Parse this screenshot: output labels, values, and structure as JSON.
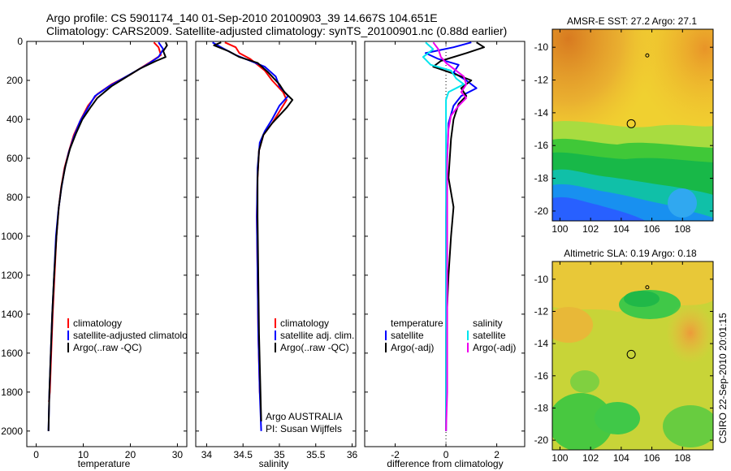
{
  "header": {
    "line1": "Argo profile: CS 5901174_140 01-Sep-2010 20100903_39 14.667S 104.651E",
    "line2": "Climatology: CARS2009. Satellite-adjusted climatology: synTS_20100901.nc (0.88d earlier)"
  },
  "footer_text": "CSIRO 22-Sep-2010 20:01:15",
  "colors": {
    "climatology": "#ff0000",
    "satellite": "#0000ff",
    "argo": "#000000",
    "salinity_satellite": "#00e5ee",
    "salinity_argo": "#ee00ee"
  },
  "chart_data": [
    {
      "type": "line",
      "id": "temperature",
      "xlabel": "temperature",
      "ylabel": "",
      "xlim": [
        -2,
        32
      ],
      "ylim": [
        2080,
        0
      ],
      "y_inverted": true,
      "xticks": [
        0,
        10,
        20,
        30
      ],
      "yticks": [
        0,
        200,
        400,
        600,
        800,
        1000,
        1200,
        1400,
        1600,
        1800,
        2000
      ],
      "legend": [
        "climatology",
        "satellite-adjusted climatology",
        "Argo(..raw -QC)"
      ],
      "series": [
        {
          "name": "climatology",
          "color": "#ff0000",
          "points": [
            [
              25.0,
              5
            ],
            [
              26.0,
              30
            ],
            [
              26.5,
              70
            ],
            [
              24.0,
              110
            ],
            [
              20.0,
              170
            ],
            [
              16.0,
              220
            ],
            [
              13.0,
              270
            ],
            [
              11.0,
              330
            ],
            [
              9.5,
              400
            ],
            [
              8.0,
              480
            ],
            [
              7.0,
              560
            ],
            [
              6.0,
              650
            ],
            [
              5.3,
              750
            ],
            [
              4.8,
              850
            ],
            [
              4.3,
              1000
            ],
            [
              3.9,
              1200
            ],
            [
              3.5,
              1400
            ],
            [
              3.2,
              1600
            ],
            [
              2.9,
              1800
            ],
            [
              2.7,
              1850
            ]
          ]
        },
        {
          "name": "satellite-adjusted climatology",
          "color": "#0000ff",
          "points": [
            [
              26.0,
              5
            ],
            [
              27.0,
              40
            ],
            [
              26.0,
              80
            ],
            [
              23.5,
              120
            ],
            [
              19.5,
              175
            ],
            [
              15.5,
              230
            ],
            [
              12.5,
              280
            ],
            [
              11.0,
              340
            ],
            [
              9.3,
              410
            ],
            [
              8.0,
              490
            ],
            [
              6.9,
              570
            ],
            [
              6.0,
              660
            ],
            [
              5.3,
              760
            ],
            [
              4.7,
              870
            ],
            [
              4.2,
              1000
            ],
            [
              3.8,
              1200
            ],
            [
              3.4,
              1400
            ],
            [
              3.1,
              1600
            ],
            [
              2.8,
              1800
            ],
            [
              2.6,
              2000
            ]
          ]
        },
        {
          "name": "Argo(..raw -QC)",
          "color": "#000000",
          "points": [
            [
              27.5,
              5
            ],
            [
              27.8,
              20
            ],
            [
              27.0,
              50
            ],
            [
              27.5,
              80
            ],
            [
              25.5,
              100
            ],
            [
              22.0,
              140
            ],
            [
              19.0,
              185
            ],
            [
              16.0,
              230
            ],
            [
              13.0,
              290
            ],
            [
              11.5,
              340
            ],
            [
              9.8,
              400
            ],
            [
              8.5,
              470
            ],
            [
              7.2,
              550
            ],
            [
              6.2,
              640
            ],
            [
              5.4,
              740
            ],
            [
              4.8,
              850
            ],
            [
              4.3,
              1000
            ],
            [
              3.8,
              1200
            ],
            [
              3.4,
              1400
            ],
            [
              3.1,
              1600
            ],
            [
              2.8,
              1800
            ],
            [
              2.6,
              2000
            ]
          ]
        }
      ],
      "annotations": []
    },
    {
      "type": "line",
      "id": "salinity",
      "xlabel": "salinity",
      "xlim": [
        33.85,
        36.05
      ],
      "ylim": [
        2080,
        0
      ],
      "y_inverted": true,
      "xticks": [
        34,
        34.5,
        35,
        35.5,
        36
      ],
      "legend": [
        "climatology",
        "satellite adj. clim.",
        "Argo(..raw -QC)"
      ],
      "series": [
        {
          "name": "climatology",
          "color": "#ff0000",
          "points": [
            [
              34.25,
              5
            ],
            [
              34.4,
              30
            ],
            [
              34.45,
              60
            ],
            [
              34.6,
              90
            ],
            [
              34.8,
              150
            ],
            [
              34.9,
              200
            ],
            [
              35.05,
              260
            ],
            [
              35.1,
              300
            ],
            [
              35.0,
              360
            ],
            [
              34.9,
              420
            ],
            [
              34.78,
              480
            ],
            [
              34.72,
              560
            ],
            [
              34.7,
              700
            ],
            [
              34.69,
              900
            ],
            [
              34.7,
              1200
            ],
            [
              34.71,
              1500
            ],
            [
              34.73,
              1800
            ],
            [
              34.74,
              1850
            ]
          ]
        },
        {
          "name": "satellite adj. clim.",
          "color": "#0000ff",
          "points": [
            [
              34.08,
              5
            ],
            [
              34.2,
              30
            ],
            [
              34.4,
              70
            ],
            [
              34.6,
              100
            ],
            [
              34.8,
              130
            ],
            [
              34.95,
              180
            ],
            [
              35.0,
              230
            ],
            [
              35.12,
              280
            ],
            [
              35.0,
              330
            ],
            [
              34.9,
              400
            ],
            [
              34.8,
              460
            ],
            [
              34.73,
              520
            ],
            [
              34.7,
              650
            ],
            [
              34.69,
              900
            ],
            [
              34.7,
              1200
            ],
            [
              34.71,
              1500
            ],
            [
              34.73,
              1800
            ],
            [
              34.75,
              2000
            ]
          ]
        },
        {
          "name": "Argo(..raw -QC)",
          "color": "#000000",
          "points": [
            [
              34.2,
              5
            ],
            [
              34.1,
              20
            ],
            [
              34.3,
              50
            ],
            [
              34.45,
              80
            ],
            [
              34.7,
              110
            ],
            [
              34.85,
              160
            ],
            [
              35.0,
              220
            ],
            [
              35.07,
              260
            ],
            [
              35.18,
              300
            ],
            [
              35.1,
              340
            ],
            [
              35.0,
              380
            ],
            [
              34.9,
              420
            ],
            [
              34.78,
              480
            ],
            [
              34.72,
              560
            ],
            [
              34.7,
              700
            ],
            [
              34.7,
              900
            ],
            [
              34.71,
              1200
            ],
            [
              34.72,
              1500
            ],
            [
              34.74,
              1800
            ],
            [
              34.75,
              1950
            ]
          ]
        }
      ],
      "annotations": [
        "Argo AUSTRALIA",
        "PI: Susan Wijffels"
      ]
    },
    {
      "type": "line",
      "id": "difference",
      "xlabel": "difference from climatology",
      "xlim": [
        -3.2,
        3.1
      ],
      "ylim": [
        2080,
        0
      ],
      "y_inverted": true,
      "xticks": [
        -2,
        0,
        2
      ],
      "legend_temperature_header": "temperature",
      "legend_salinity_header": "salinity",
      "legend": [
        "satellite",
        "Argo(-adj)",
        "satellite",
        "Argo(-adj)"
      ],
      "series": [
        {
          "name": "temperature satellite",
          "color": "#0000ff",
          "points": [
            [
              1.0,
              5
            ],
            [
              0.3,
              30
            ],
            [
              -0.8,
              60
            ],
            [
              -0.3,
              90
            ],
            [
              0.5,
              120
            ],
            [
              0.3,
              160
            ],
            [
              0.8,
              200
            ],
            [
              1.2,
              240
            ],
            [
              0.6,
              280
            ],
            [
              0.3,
              330
            ],
            [
              0.1,
              420
            ],
            [
              0.05,
              600
            ],
            [
              0.0,
              900
            ],
            [
              0.0,
              1200
            ],
            [
              0.0,
              1600
            ],
            [
              0.0,
              2000
            ]
          ]
        },
        {
          "name": "temperature Argo(-adj)",
          "color": "#000000",
          "points": [
            [
              1.2,
              5
            ],
            [
              1.5,
              30
            ],
            [
              0.8,
              60
            ],
            [
              -0.2,
              100
            ],
            [
              -0.5,
              130
            ],
            [
              0.4,
              170
            ],
            [
              1.0,
              200
            ],
            [
              0.6,
              240
            ],
            [
              0.8,
              280
            ],
            [
              0.5,
              320
            ],
            [
              0.3,
              400
            ],
            [
              0.2,
              500
            ],
            [
              0.1,
              700
            ],
            [
              0.3,
              850
            ],
            [
              0.2,
              1000
            ],
            [
              0.1,
              1200
            ],
            [
              0.0,
              1500
            ],
            [
              0.0,
              2000
            ]
          ]
        },
        {
          "name": "salinity satellite",
          "color": "#00e5ee",
          "points": [
            [
              -0.8,
              5
            ],
            [
              -0.5,
              40
            ],
            [
              -0.9,
              80
            ],
            [
              -0.6,
              120
            ],
            [
              0.2,
              150
            ],
            [
              0.4,
              190
            ],
            [
              0.7,
              220
            ],
            [
              0.1,
              260
            ],
            [
              0.0,
              300
            ],
            [
              0.0,
              400
            ],
            [
              0.0,
              600
            ],
            [
              0.0,
              900
            ],
            [
              0.0,
              1300
            ],
            [
              0.0,
              1700
            ],
            [
              0.0,
              2000
            ]
          ]
        },
        {
          "name": "salinity Argo(-adj)",
          "color": "#ee00ee",
          "points": [
            [
              -0.5,
              5
            ],
            [
              -0.3,
              40
            ],
            [
              -0.2,
              80
            ],
            [
              0.0,
              110
            ],
            [
              0.3,
              140
            ],
            [
              0.7,
              180
            ],
            [
              0.8,
              220
            ],
            [
              0.6,
              260
            ],
            [
              0.8,
              290
            ],
            [
              0.5,
              330
            ],
            [
              0.2,
              380
            ],
            [
              0.1,
              450
            ],
            [
              0.05,
              600
            ],
            [
              0.05,
              900
            ],
            [
              0.05,
              1200
            ],
            [
              0.05,
              1500
            ],
            [
              0.05,
              1800
            ],
            [
              0.0,
              2000
            ]
          ]
        }
      ],
      "annotations": []
    },
    {
      "type": "heatmap",
      "id": "sst_map",
      "title": "AMSR-E SST: 27.2 Argo: 27.1",
      "xlim": [
        99.5,
        110
      ],
      "ylim": [
        -20.6,
        -8.9
      ],
      "xticks": [
        100,
        102,
        104,
        106,
        108
      ],
      "yticks": [
        -10,
        -12,
        -14,
        -16,
        -18,
        -20
      ],
      "argo_position": [
        104.651,
        -14.667
      ],
      "other_float_position": [
        105.7,
        -10.5
      ]
    },
    {
      "type": "heatmap",
      "id": "sla_map",
      "title": "Altimetric SLA: 0.19 Argo: 0.18",
      "xlim": [
        99.5,
        110
      ],
      "ylim": [
        -20.6,
        -8.9
      ],
      "xticks": [
        100,
        102,
        104,
        106,
        108
      ],
      "yticks": [
        -10,
        -12,
        -14,
        -16,
        -18,
        -20
      ],
      "argo_position": [
        104.651,
        -14.667
      ],
      "other_float_position": [
        105.7,
        -10.5
      ]
    }
  ]
}
